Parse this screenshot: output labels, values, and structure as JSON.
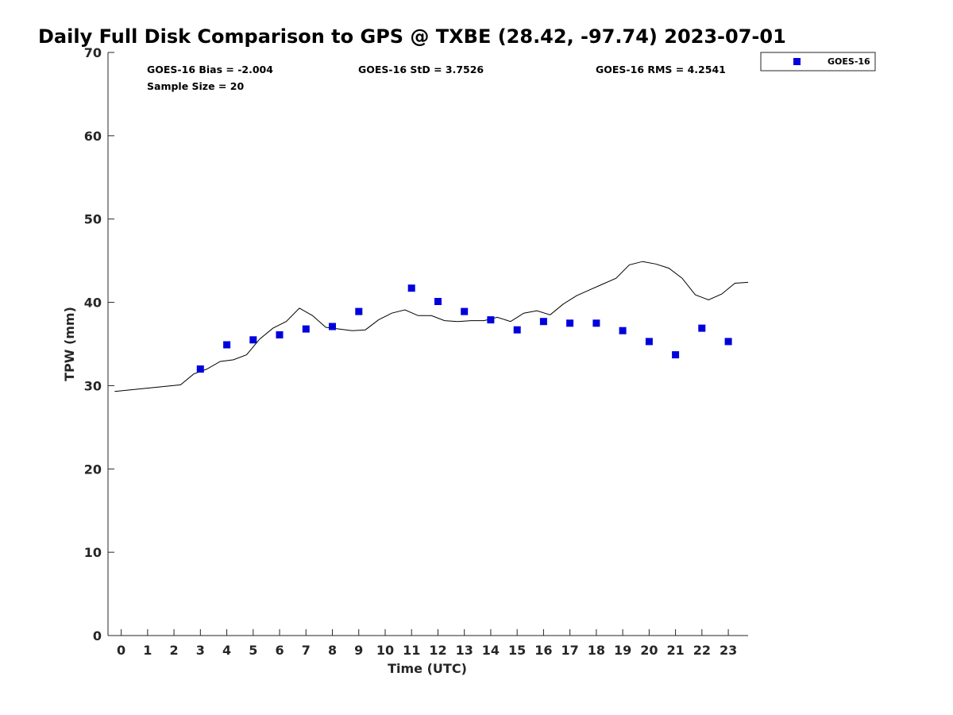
{
  "chart_data": {
    "type": "scatter",
    "title": "Daily Full Disk Comparison to GPS @ TXBE (28.42, -97.74) 2023-07-01",
    "xlabel": "Time (UTC)",
    "ylabel": "TPW (mm)",
    "xlim": [
      -0.5,
      23.75
    ],
    "ylim": [
      0,
      70
    ],
    "x_ticks": [
      "0",
      "1",
      "2",
      "3",
      "4",
      "5",
      "6",
      "7",
      "8",
      "9",
      "10",
      "11",
      "12",
      "13",
      "14",
      "15",
      "16",
      "17",
      "18",
      "19",
      "20",
      "21",
      "22",
      "23"
    ],
    "y_ticks": [
      "0",
      "10",
      "20",
      "30",
      "40",
      "50",
      "60",
      "70"
    ],
    "grid": false,
    "legend_position": "top-right outside",
    "stats": {
      "bias": "GOES-16 Bias = -2.004",
      "std": "GOES-16 StD = 3.7526",
      "rms": "GOES-16 RMS = 4.2541",
      "sample": "Sample Size = 20"
    },
    "series": [
      {
        "name": "GOES-16",
        "kind": "scatter",
        "marker": "square",
        "color": "#0000dd",
        "x": [
          3,
          4,
          5,
          6,
          7,
          8,
          9,
          11,
          12,
          13,
          14,
          15,
          16,
          17,
          18,
          19,
          20,
          21,
          22,
          23
        ],
        "y": [
          32.0,
          34.9,
          35.5,
          36.1,
          36.8,
          37.1,
          38.9,
          41.7,
          40.1,
          38.9,
          37.9,
          36.7,
          37.7,
          37.5,
          37.5,
          36.6,
          35.3,
          33.7,
          36.9,
          35.3
        ]
      },
      {
        "kind": "line",
        "color": "#000000",
        "x": [
          -0.25,
          2.25,
          2.75,
          3.25,
          3.75,
          4.25,
          4.75,
          5.25,
          5.75,
          6.25,
          6.75,
          7.25,
          7.75,
          8.25,
          8.75,
          9.25,
          9.75,
          10.25,
          10.75,
          11.25,
          11.75,
          12.25,
          12.75,
          13.25,
          13.75,
          14.25,
          14.75,
          15.25,
          15.75,
          16.25,
          16.75,
          17.25,
          17.75,
          18.25,
          18.75,
          19.25,
          19.75,
          20.25,
          20.75,
          21.25,
          21.75,
          22.25,
          22.75,
          23.25,
          23.75
        ],
        "y": [
          29.3,
          30.1,
          31.4,
          32.0,
          32.9,
          33.1,
          33.7,
          35.6,
          36.9,
          37.7,
          39.3,
          38.4,
          37.0,
          36.8,
          36.6,
          36.7,
          37.9,
          38.7,
          39.1,
          38.4,
          38.4,
          37.8,
          37.7,
          37.8,
          37.8,
          38.2,
          37.7,
          38.7,
          39.0,
          38.5,
          39.8,
          40.8,
          41.5,
          42.2,
          42.9,
          44.5,
          44.9,
          44.6,
          44.1,
          42.9,
          40.9,
          40.3,
          41.0,
          42.3,
          42.4
        ]
      }
    ]
  }
}
